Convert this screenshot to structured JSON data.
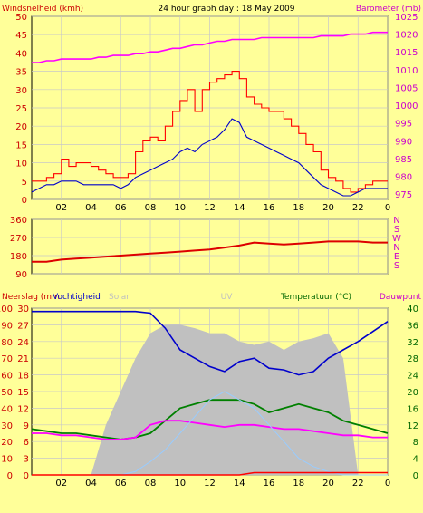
{
  "header": {
    "title": "24 hour graph day : 18 May 2009",
    "left_label": "Windsnelheid (kmh)",
    "right_label": "Barometer (mb)"
  },
  "panel3_labels": {
    "neerslag": "Neerslag (mm",
    "vochtigheid": "Vochtigheid",
    "solar": "Solar",
    "uv": "UV",
    "temperatuur": "Temperatuur (°C)",
    "dauwpunt": "Dauwpunt"
  },
  "colors": {
    "background": "#ffff99",
    "grid": "#c8c8c8",
    "axis_text": "#000000",
    "wind_gust": "#ff0000",
    "wind_avg": "#0000cc",
    "barometer": "#ff00ff",
    "direction": "#dd0000",
    "humidity": "#0000cc",
    "temperature": "#008000",
    "dewpoint": "#ff00ff",
    "solar": "#c0c0c0",
    "uv": "#99ccff",
    "rain": "#ff0000",
    "left_axis_text": "#cc0000",
    "right_axis_text": "#cc00cc",
    "temp_axis_text": "#006600"
  },
  "chart_data": [
    {
      "type": "line",
      "name": "wind_barometer",
      "x_ticks": [
        "02",
        "04",
        "06",
        "08",
        "10",
        "12",
        "14",
        "16",
        "18",
        "20",
        "22",
        "0"
      ],
      "x": [
        0,
        0.5,
        1,
        1.5,
        2,
        2.5,
        3,
        3.5,
        4,
        4.5,
        5,
        5.5,
        6,
        6.5,
        7,
        7.5,
        8,
        8.5,
        9,
        9.5,
        10,
        10.5,
        11,
        11.5,
        12,
        12.5,
        13,
        13.5,
        14,
        14.5,
        15,
        15.5,
        16,
        16.5,
        17,
        17.5,
        18,
        18.5,
        19,
        19.5,
        20,
        20.5,
        21,
        21.5,
        22,
        22.5,
        23,
        23.5,
        24
      ],
      "ylim_left": [
        0,
        50
      ],
      "yticks_left": [
        0,
        5,
        10,
        15,
        20,
        25,
        30,
        35,
        40,
        45,
        50
      ],
      "ylim_right": [
        973.5,
        1025
      ],
      "yticks_right": [
        975,
        980,
        985,
        990,
        995,
        1000,
        1005,
        1010,
        1015,
        1020,
        1025
      ],
      "series": [
        {
          "label": "wind_gust",
          "axis": "left",
          "values": [
            5,
            5,
            6,
            7,
            11,
            9,
            10,
            10,
            9,
            8,
            7,
            6,
            6,
            7,
            13,
            16,
            17,
            16,
            20,
            24,
            27,
            30,
            24,
            30,
            32,
            33,
            34,
            35,
            33,
            28,
            26,
            25,
            24,
            24,
            22,
            20,
            18,
            15,
            13,
            8,
            6,
            5,
            3,
            2,
            3,
            4,
            5,
            5,
            5
          ]
        },
        {
          "label": "wind_avg",
          "axis": "left",
          "values": [
            2,
            3,
            4,
            4,
            5,
            5,
            5,
            4,
            4,
            4,
            4,
            4,
            3,
            4,
            6,
            7,
            8,
            9,
            10,
            11,
            13,
            14,
            13,
            15,
            16,
            17,
            19,
            22,
            21,
            17,
            16,
            15,
            14,
            13,
            12,
            11,
            10,
            8,
            6,
            4,
            3,
            2,
            1,
            1,
            2,
            3,
            3,
            3,
            3
          ]
        },
        {
          "label": "barometer",
          "axis": "right",
          "values": [
            1012,
            1012,
            1012.5,
            1012.5,
            1013,
            1013,
            1013,
            1013,
            1013,
            1013.5,
            1013.5,
            1014,
            1014,
            1014,
            1014.5,
            1014.5,
            1015,
            1015,
            1015.5,
            1016,
            1016,
            1016.5,
            1017,
            1017,
            1017.5,
            1018,
            1018,
            1018.5,
            1018.5,
            1018.5,
            1018.5,
            1019,
            1019,
            1019,
            1019,
            1019,
            1019,
            1019,
            1019,
            1019.5,
            1019.5,
            1019.5,
            1019.5,
            1020,
            1020,
            1020,
            1020.5,
            1020.5,
            1020.5
          ]
        }
      ],
      "extra_ticks_left": [
        "0"
      ]
    },
    {
      "type": "line",
      "name": "wind_direction",
      "x": [
        0,
        1,
        2,
        3,
        4,
        5,
        6,
        7,
        8,
        9,
        10,
        11,
        12,
        13,
        14,
        15,
        16,
        17,
        18,
        19,
        20,
        21,
        22,
        23,
        24
      ],
      "ylim": [
        90,
        360
      ],
      "yticks_left": [
        90,
        180,
        270,
        360
      ],
      "yticks_right": [
        "S",
        "E",
        "N",
        "W",
        "S",
        "N"
      ],
      "right_tick_values": [
        135,
        180,
        225,
        270,
        315,
        360
      ],
      "series": [
        {
          "label": "direction",
          "values": [
            150,
            150,
            160,
            165,
            170,
            175,
            180,
            185,
            190,
            195,
            200,
            205,
            210,
            220,
            230,
            245,
            240,
            235,
            240,
            245,
            250,
            250,
            250,
            245,
            245
          ]
        }
      ]
    },
    {
      "type": "line",
      "name": "humidity_temperature",
      "x": [
        0,
        1,
        2,
        3,
        4,
        5,
        6,
        7,
        8,
        9,
        10,
        11,
        12,
        13,
        14,
        15,
        16,
        17,
        18,
        19,
        20,
        21,
        22,
        23,
        24
      ],
      "ylim_humidity": [
        0,
        100
      ],
      "yticks_humidity": [
        0,
        10,
        20,
        30,
        40,
        50,
        60,
        70,
        80,
        90,
        100
      ],
      "ylim_rain": [
        0,
        30
      ],
      "yticks_rain": [
        0,
        3,
        6,
        9,
        12,
        15,
        18,
        21,
        24,
        27,
        30
      ],
      "ylim_temp": [
        0,
        40
      ],
      "yticks_temp": [
        0,
        4,
        8,
        12,
        16,
        20,
        24,
        28,
        32,
        36,
        40
      ],
      "series": [
        {
          "label": "humidity",
          "axis": "humidity",
          "values": [
            98,
            98,
            98,
            98,
            98,
            98,
            98,
            98,
            97,
            88,
            75,
            70,
            65,
            62,
            68,
            70,
            64,
            63,
            60,
            62,
            70,
            75,
            80,
            86,
            92
          ]
        },
        {
          "label": "temperature",
          "axis": "temp",
          "values": [
            11,
            10.5,
            10,
            10,
            9.5,
            9,
            8.5,
            9,
            10,
            13,
            16,
            17,
            18,
            18,
            18,
            17,
            15,
            16,
            17,
            16,
            15,
            13,
            12,
            11,
            10
          ]
        },
        {
          "label": "dewpoint",
          "axis": "temp",
          "values": [
            10,
            10,
            9.5,
            9.5,
            9,
            8.5,
            8.5,
            9,
            12,
            13,
            13,
            12.5,
            12,
            11.5,
            12,
            12,
            11.5,
            11,
            11,
            10.5,
            10,
            9.5,
            9.5,
            9,
            9
          ]
        },
        {
          "label": "solar",
          "axis": "humidity",
          "values": [
            0,
            0,
            0,
            0,
            0,
            30,
            50,
            70,
            85,
            90,
            90,
            88,
            85,
            85,
            80,
            78,
            80,
            75,
            80,
            82,
            85,
            70,
            0,
            0,
            0
          ]
        },
        {
          "label": "uv",
          "axis": "humidity",
          "values": [
            0,
            0,
            0,
            0,
            0,
            0,
            0,
            2,
            8,
            15,
            25,
            35,
            45,
            50,
            45,
            40,
            30,
            20,
            10,
            5,
            2,
            0,
            0,
            0,
            0
          ]
        },
        {
          "label": "rain",
          "axis": "rain",
          "values": [
            0,
            0,
            0,
            0,
            0,
            0,
            0,
            0,
            0,
            0,
            0,
            0,
            0,
            0,
            0,
            0.4,
            0.4,
            0.4,
            0.4,
            0.4,
            0.4,
            0.4,
            0.4,
            0.4,
            0.4
          ]
        }
      ]
    }
  ]
}
